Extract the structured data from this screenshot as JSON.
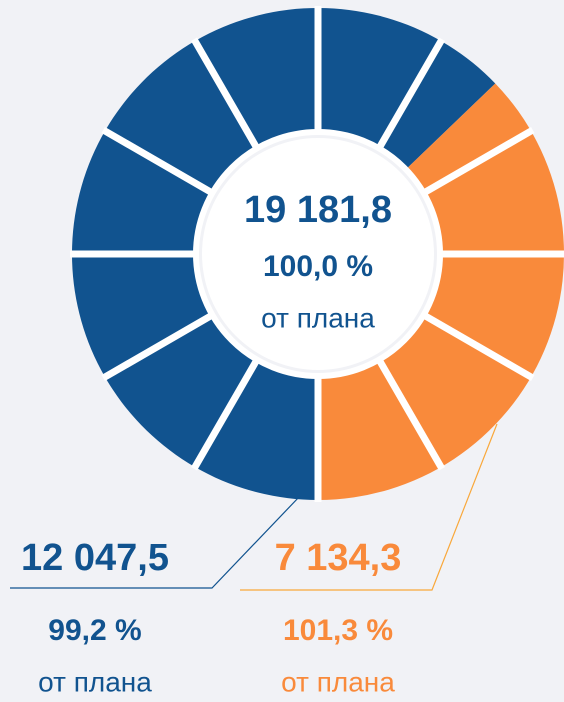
{
  "chart_data": {
    "type": "donut",
    "values": [
      12047.5,
      7134.3
    ],
    "value_labels": [
      "12 047,5",
      "7 134,3"
    ],
    "colors": [
      "#11538f",
      "#f98a3b"
    ],
    "percents": [
      99.2,
      101.3
    ],
    "percent_labels": [
      "99,2 %",
      "101,3 %"
    ],
    "notes": [
      "от плана",
      "от плана"
    ],
    "center": {
      "value": 19181.8,
      "label": "19 181,8",
      "percent": 100.0,
      "percent_label": "100,0 %",
      "note": "от плана"
    }
  }
}
